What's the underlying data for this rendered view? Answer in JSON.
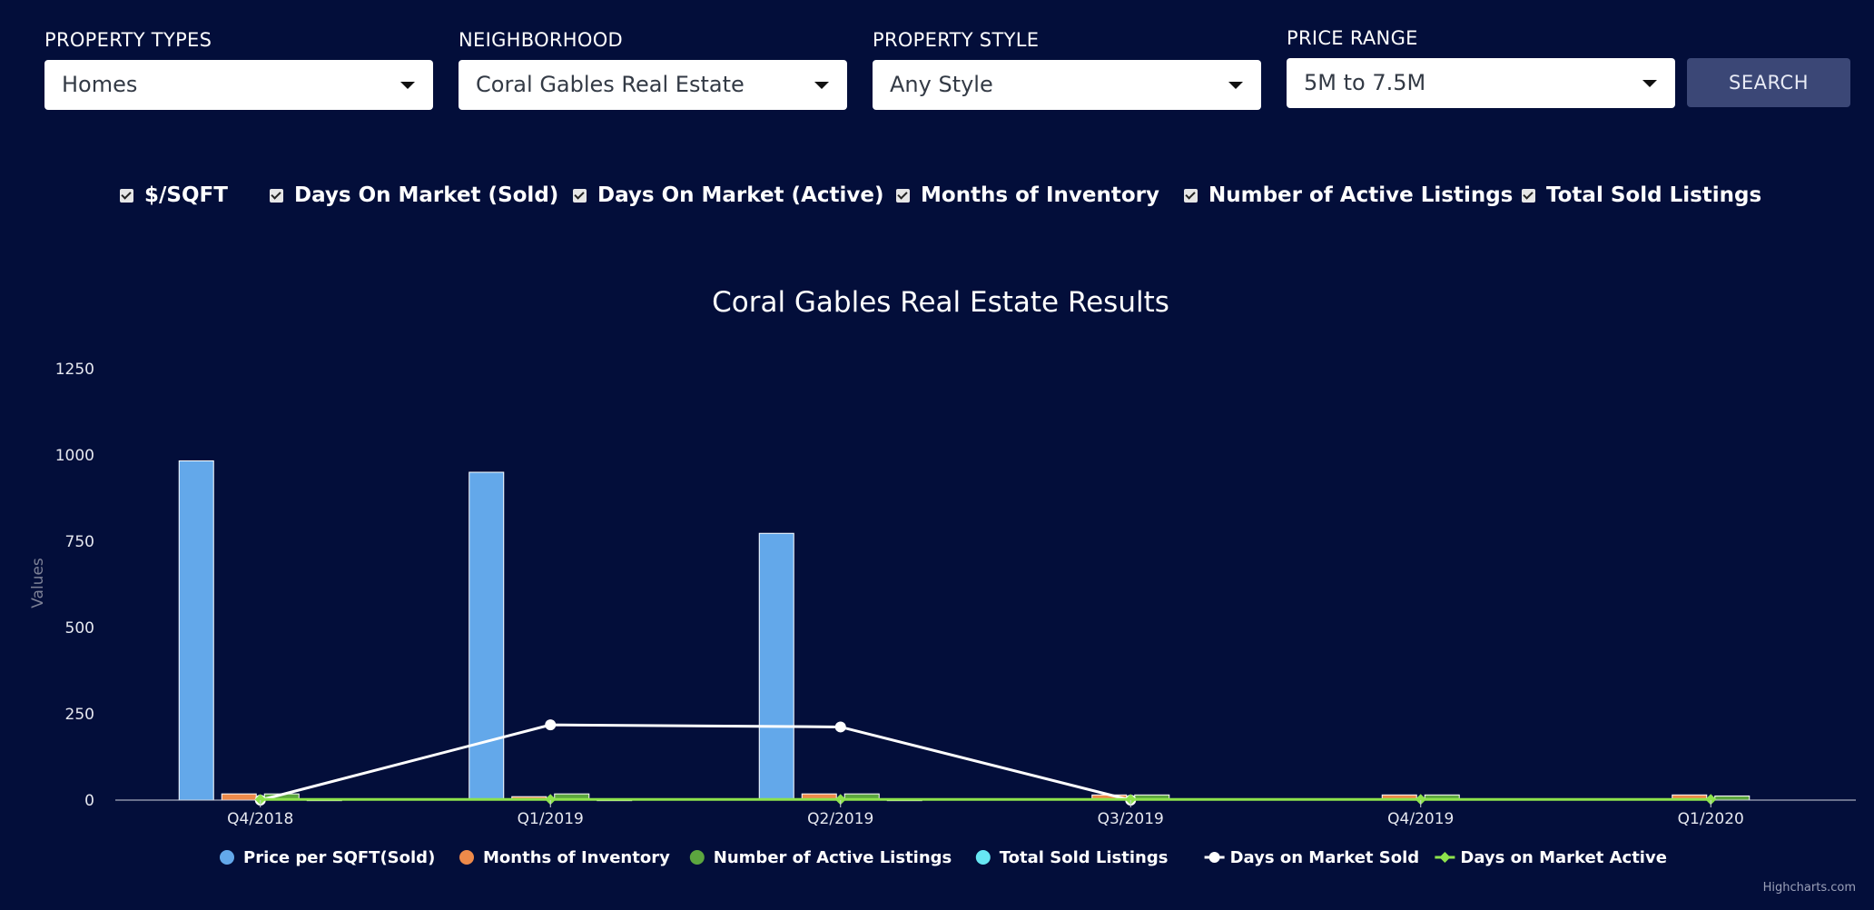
{
  "filters": [
    {
      "label": "PROPERTY TYPES",
      "value": "Homes"
    },
    {
      "label": "NEIGHBORHOOD",
      "value": "Coral Gables Real Estate"
    },
    {
      "label": "PROPERTY STYLE",
      "value": "Any Style"
    },
    {
      "label": "PRICE RANGE",
      "value": "5M to 7.5M"
    }
  ],
  "search_label": "SEARCH",
  "toggles": [
    {
      "label": "$/SQFT",
      "checked": true
    },
    {
      "label": "Days On Market (Sold)",
      "checked": true
    },
    {
      "label": "Days On Market (Active)",
      "checked": true
    },
    {
      "label": "Months of Inventory",
      "checked": true
    },
    {
      "label": "Number of Active Listings",
      "checked": true
    },
    {
      "label": "Total Sold Listings",
      "checked": true
    }
  ],
  "chart_data": {
    "type": "bar",
    "title": "Coral Gables Real Estate Results",
    "xlabel": "",
    "ylabel": "Values",
    "categories": [
      "Q4/2018",
      "Q1/2019",
      "Q2/2019",
      "Q3/2019",
      "Q4/2019",
      "Q1/2020"
    ],
    "yticks": [
      0,
      250,
      500,
      750,
      1000,
      1250
    ],
    "ylim": [
      0,
      1250
    ],
    "grid": false,
    "legend_position": "bottom",
    "series": [
      {
        "name": "Price per SQFT(Sold)",
        "kind": "bar",
        "color": "#63a8ea",
        "values": [
          983,
          950,
          773,
          0,
          0,
          0
        ]
      },
      {
        "name": "Months of Inventory",
        "kind": "bar",
        "color": "#ee8a4a",
        "values": [
          18,
          10,
          18,
          15,
          15,
          15
        ]
      },
      {
        "name": "Number of Active Listings",
        "kind": "bar",
        "color": "#5ca63f",
        "values": [
          18,
          18,
          18,
          15,
          15,
          12
        ]
      },
      {
        "name": "Total Sold Listings",
        "kind": "bar",
        "color": "#67e7f3",
        "values": [
          1,
          1,
          1,
          0,
          0,
          0
        ]
      },
      {
        "name": "Days on Market Sold",
        "kind": "line",
        "color": "#ffffff",
        "values": [
          0,
          218,
          212,
          0,
          null,
          null
        ]
      },
      {
        "name": "Days on Market Active",
        "kind": "line",
        "color": "#8ee34c",
        "values": [
          2,
          2,
          2,
          2,
          2,
          2
        ]
      }
    ],
    "credits": "Highcharts.com"
  }
}
